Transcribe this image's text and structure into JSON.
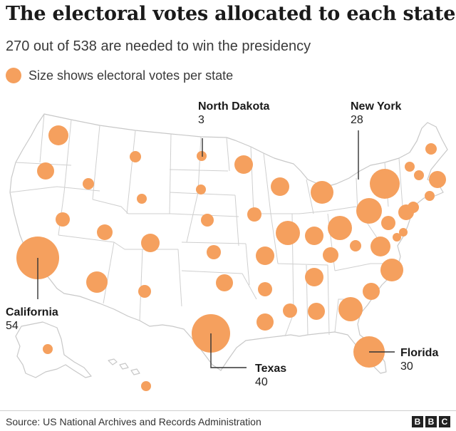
{
  "title": "The electoral votes allocated to each state",
  "subtitle": "270 out of 538 are needed to win the presidency",
  "legend": {
    "label": "Size shows electoral votes per state"
  },
  "colors": {
    "bubble": "#f5a05e",
    "state_fill": "#ffffff",
    "state_border": "#c8c8c8",
    "text": "#222222"
  },
  "labels": {
    "north_dakota": {
      "name": "North Dakota",
      "votes": "3"
    },
    "new_york": {
      "name": "New York",
      "votes": "28"
    },
    "california": {
      "name": "California",
      "votes": "54"
    },
    "texas": {
      "name": "Texas",
      "votes": "40"
    },
    "florida": {
      "name": "Florida",
      "votes": "30"
    }
  },
  "source": "Source: US National Archives and Records Administration",
  "logo": {
    "letters": [
      "B",
      "B",
      "C"
    ]
  }
}
